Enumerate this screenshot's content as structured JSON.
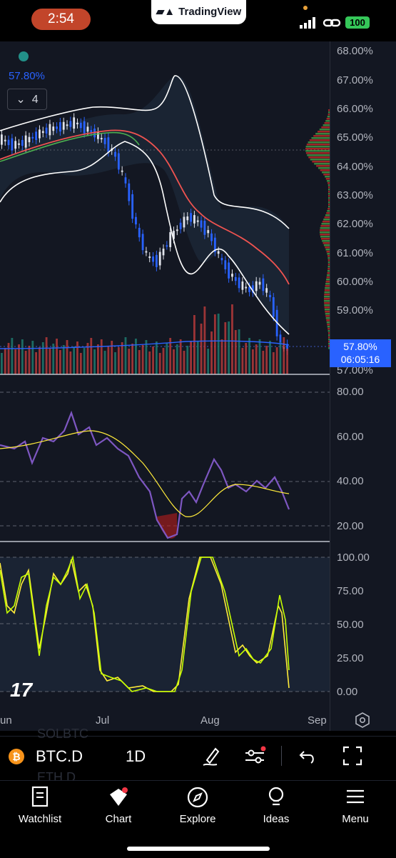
{
  "status_bar": {
    "time": "2:54",
    "app_badge": "TradingView",
    "battery": "100"
  },
  "chart": {
    "legend_value": "57.80%",
    "indicator_toggle_count": "4",
    "price_axis": [
      "68.00%",
      "67.00%",
      "66.00%",
      "65.00%",
      "64.00%",
      "63.00%",
      "62.00%",
      "61.00%",
      "60.00%",
      "59.00%"
    ],
    "price_axis_bottom": "57.00%",
    "last_price": "57.80%",
    "countdown": "06:05:16",
    "rsi_axis": [
      "80.00",
      "60.00",
      "40.00",
      "20.00"
    ],
    "stoch_axis": [
      "100.00",
      "75.00",
      "50.00",
      "25.00",
      "0.00"
    ],
    "time_axis": [
      "un",
      "Jul",
      "Aug",
      "Sep"
    ],
    "watermark": "17"
  },
  "chart_data": {
    "type": "line",
    "series": [
      {
        "values": [
          65.1,
          64.9,
          65.0,
          65.2,
          65.4,
          65.5,
          65.6,
          65.7,
          65.5,
          65.3,
          65.0,
          64.5,
          63.5,
          62.0,
          61.0,
          60.8,
          61.5,
          62.0,
          62.4,
          62.2,
          61.8,
          61.0,
          60.4,
          60.0,
          59.8,
          60.1,
          59.5,
          57.8
        ]
      }
    ],
    "ylim": [
      57,
      68.3
    ]
  },
  "toolbar": {
    "symbol": "BTC.D",
    "interval": "1D",
    "ghost_1": "SOLBTC",
    "ghost_2": "ETH.D"
  },
  "nav": {
    "watchlist": "Watchlist",
    "chart": "Chart",
    "explore": "Explore",
    "ideas": "Ideas",
    "menu": "Menu"
  },
  "colors": {
    "accent": "#2962ff",
    "up": "#26a69a",
    "down": "#ef5350",
    "rsi": "#7e57c2",
    "stoch_k": "#c6ff00",
    "stoch_d": "#ffeb3b"
  }
}
